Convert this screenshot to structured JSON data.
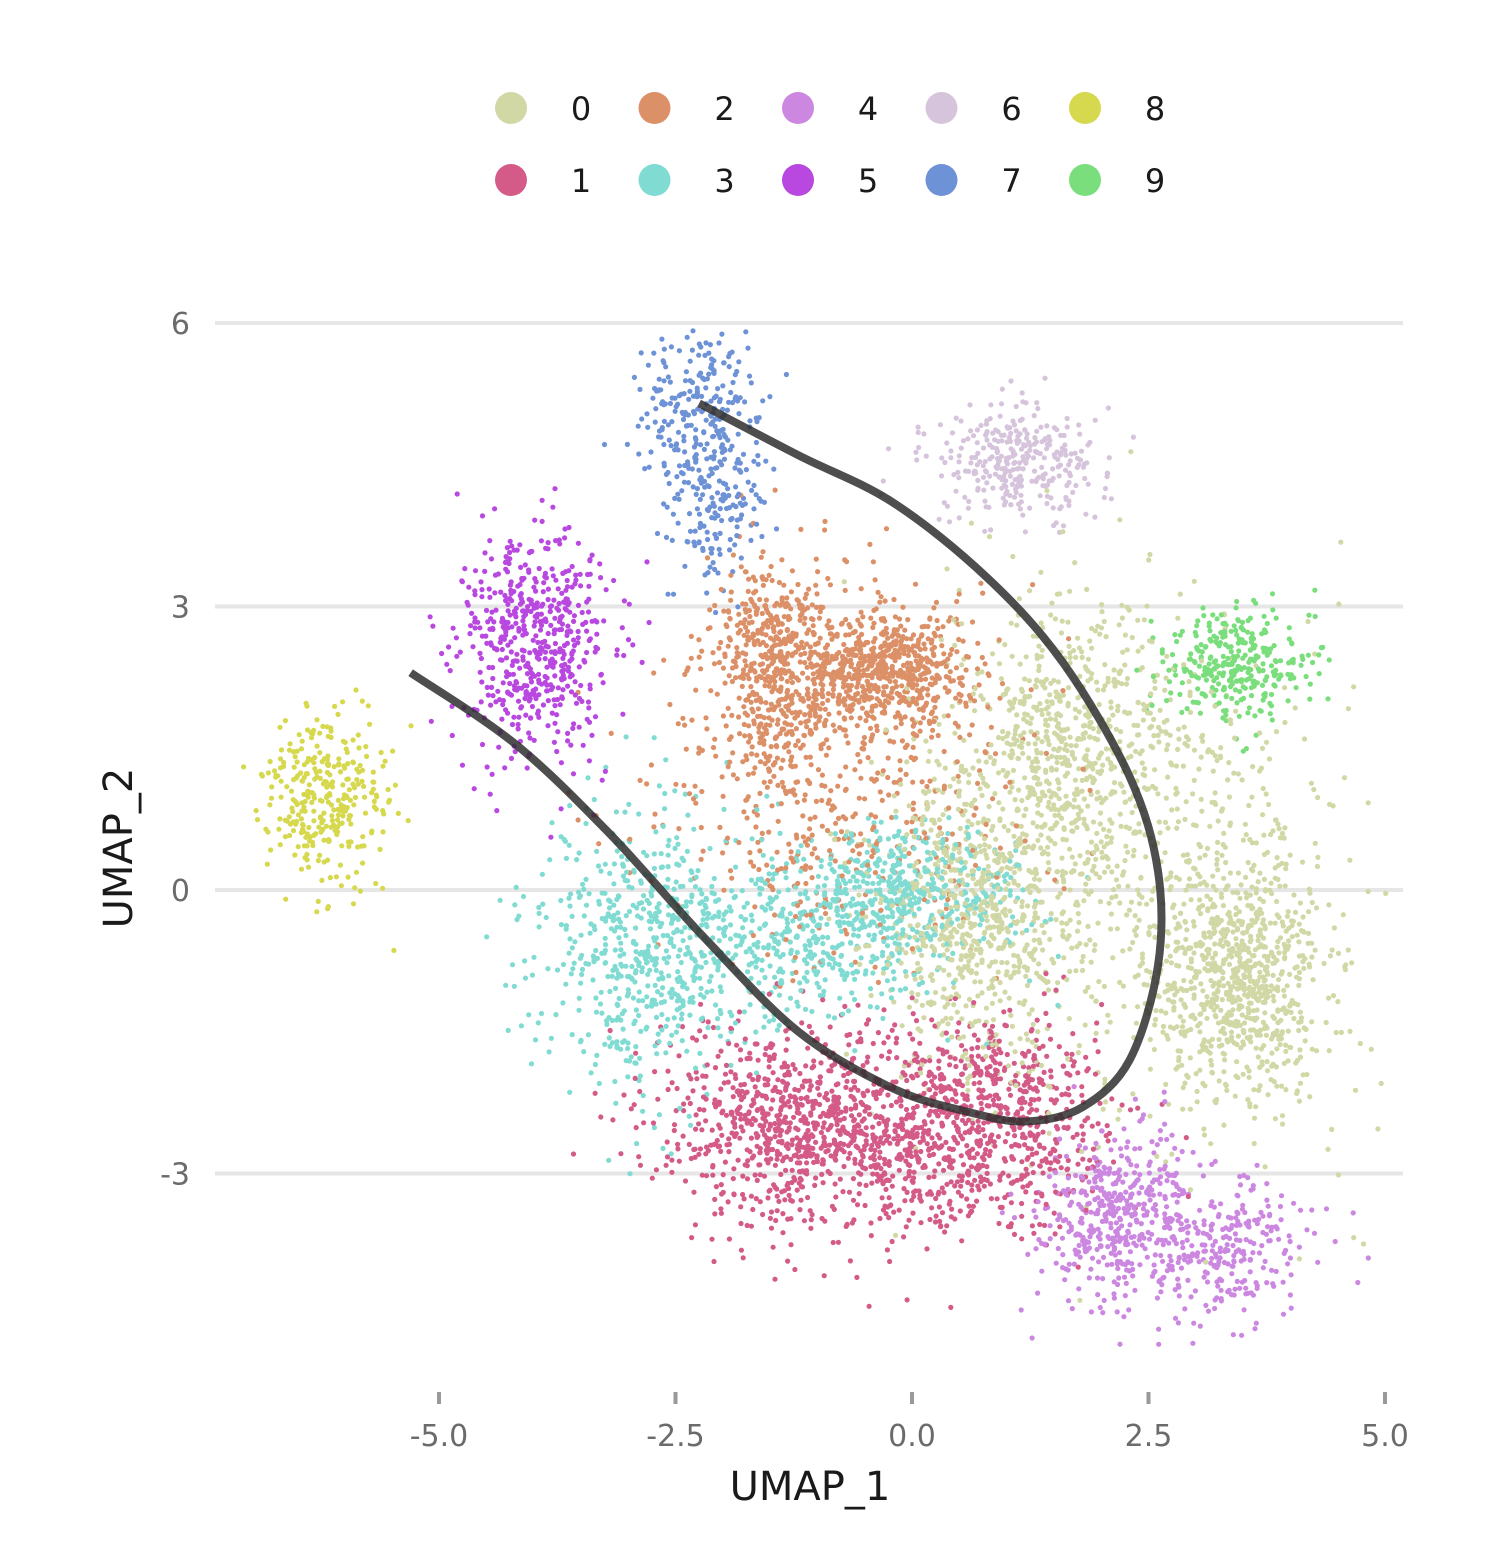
{
  "chart_data": {
    "type": "scatter",
    "xlabel": "UMAP_1",
    "ylabel": "UMAP_2",
    "xlim": [
      -7.0,
      5.1
    ],
    "ylim": [
      -4.8,
      6.2
    ],
    "x_ticks": [
      -5.0,
      -2.5,
      0.0,
      2.5,
      5.0
    ],
    "x_tick_labels": [
      "-5.0",
      "-2.5",
      "0.0",
      "2.5",
      "5.0"
    ],
    "y_ticks": [
      -3,
      0,
      3,
      6
    ],
    "y_tick_labels": [
      "-3",
      "0",
      "3",
      "6"
    ],
    "grid": "horizontal",
    "legend_position": "top",
    "legend": [
      {
        "label": "0",
        "color": "#d1d8a6"
      },
      {
        "label": "1",
        "color": "#d45a88"
      },
      {
        "label": "2",
        "color": "#dc9068"
      },
      {
        "label": "3",
        "color": "#80dbd2"
      },
      {
        "label": "4",
        "color": "#cc88e0"
      },
      {
        "label": "5",
        "color": "#b848e0"
      },
      {
        "label": "6",
        "color": "#d6c4dc"
      },
      {
        "label": "7",
        "color": "#6e92d6"
      },
      {
        "label": "8",
        "color": "#d6d84e"
      },
      {
        "label": "9",
        "color": "#7ade7c"
      }
    ],
    "clusters": [
      {
        "name": "0",
        "color": "#d1d8a6",
        "n": 2600,
        "blobs": [
          [
            2.8,
            0.0,
            0.95,
            1.3
          ],
          [
            1.6,
            1.5,
            0.6,
            0.8
          ],
          [
            0.6,
            -0.3,
            0.5,
            0.8
          ],
          [
            3.5,
            -1.0,
            0.4,
            0.6
          ]
        ]
      },
      {
        "name": "1",
        "color": "#d45a88",
        "n": 1700,
        "blobs": [
          [
            -0.3,
            -2.8,
            1.05,
            0.5
          ],
          [
            -1.3,
            -2.3,
            0.7,
            0.45
          ],
          [
            0.8,
            -2.3,
            0.6,
            0.5
          ]
        ]
      },
      {
        "name": "2",
        "color": "#dc9068",
        "n": 1600,
        "blobs": [
          [
            -0.7,
            1.2,
            1.0,
            0.95
          ],
          [
            -1.4,
            2.5,
            0.35,
            0.5
          ],
          [
            -0.2,
            2.3,
            0.4,
            0.3
          ]
        ]
      },
      {
        "name": "3",
        "color": "#80dbd2",
        "n": 1400,
        "blobs": [
          [
            -2.9,
            -0.6,
            0.55,
            0.8
          ],
          [
            -1.4,
            -0.5,
            0.9,
            0.45
          ],
          [
            -0.1,
            0.0,
            0.6,
            0.35
          ]
        ]
      },
      {
        "name": "4",
        "color": "#cc88e0",
        "n": 700,
        "blobs": [
          [
            3.1,
            -3.8,
            0.55,
            0.4
          ],
          [
            2.1,
            -3.4,
            0.4,
            0.45
          ]
        ]
      },
      {
        "name": "5",
        "color": "#b848e0",
        "n": 550,
        "blobs": [
          [
            -4.0,
            2.6,
            0.4,
            0.6
          ]
        ]
      },
      {
        "name": "6",
        "color": "#d6c4dc",
        "n": 320,
        "blobs": [
          [
            1.1,
            4.5,
            0.45,
            0.3
          ]
        ]
      },
      {
        "name": "7",
        "color": "#6e92d6",
        "n": 380,
        "blobs": [
          [
            -2.3,
            5.1,
            0.35,
            0.45
          ],
          [
            -2.1,
            4.2,
            0.25,
            0.5
          ]
        ]
      },
      {
        "name": "8",
        "color": "#d6d84e",
        "n": 320,
        "blobs": [
          [
            -6.2,
            1.0,
            0.35,
            0.45
          ]
        ]
      },
      {
        "name": "9",
        "color": "#7ade7c",
        "n": 320,
        "blobs": [
          [
            3.4,
            2.4,
            0.4,
            0.3
          ]
        ]
      }
    ],
    "trajectory": [
      [
        -5.3,
        2.3
      ],
      [
        -4.2,
        1.55
      ],
      [
        -3.2,
        0.6
      ],
      [
        -2.2,
        -0.5
      ],
      [
        -1.2,
        -1.5
      ],
      [
        -0.2,
        -2.1
      ],
      [
        0.6,
        -2.35
      ],
      [
        1.2,
        -2.45
      ],
      [
        1.8,
        -2.3
      ],
      [
        2.3,
        -1.8
      ],
      [
        2.6,
        -0.8
      ],
      [
        2.6,
        0.2
      ],
      [
        2.3,
        1.2
      ],
      [
        1.6,
        2.4
      ],
      [
        0.8,
        3.3
      ],
      [
        -0.2,
        4.1
      ],
      [
        -1.2,
        4.6
      ],
      [
        -2.25,
        5.15
      ]
    ]
  }
}
